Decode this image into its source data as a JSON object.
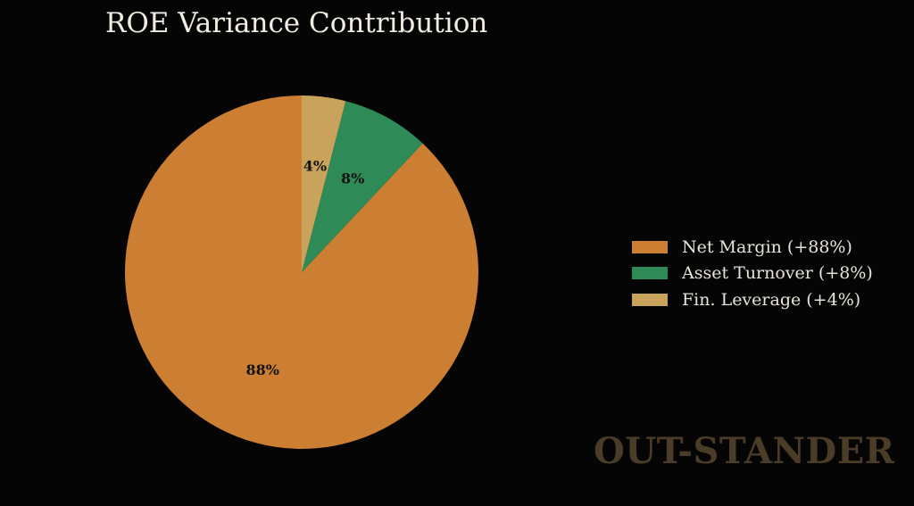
{
  "chart_data": {
    "type": "pie",
    "title": "ROE Variance Contribution",
    "slices": [
      {
        "label": "Net Margin (+88%)",
        "value": 88,
        "pct_label": "88%",
        "color": "#cc7f32"
      },
      {
        "label": "Asset Turnover (+8%)",
        "value": 8,
        "pct_label": "8%",
        "color": "#2e8b57"
      },
      {
        "label": "Fin. Leverage (+4%)",
        "value": 4,
        "pct_label": "4%",
        "color": "#c9a35c"
      }
    ],
    "legend_position": "right"
  },
  "watermark": "OUT-STANDER"
}
